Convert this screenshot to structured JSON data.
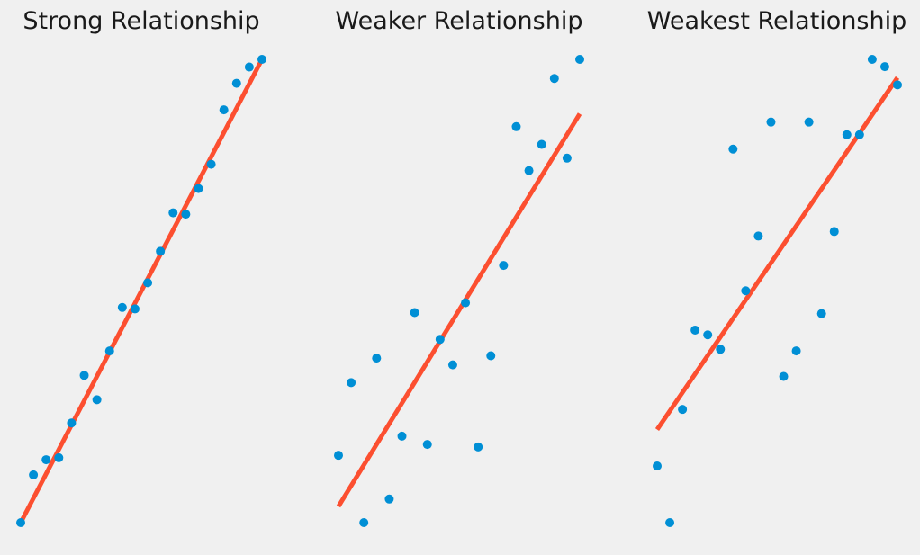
{
  "colors": {
    "background": "#f0f0f0",
    "points": "#008fd5",
    "fit_line": "#fc4f30"
  },
  "chart_data": [
    {
      "type": "scatter",
      "title": "Strong Relationship",
      "xlim": [
        0,
        19
      ],
      "ylim": [
        0,
        1
      ],
      "points": [
        [
          0,
          0.0
        ],
        [
          1,
          0.1031
        ],
        [
          2,
          0.1358
        ],
        [
          3,
          0.1401
        ],
        [
          4,
          0.2151
        ],
        [
          5,
          0.3178
        ],
        [
          6,
          0.2654
        ],
        [
          7,
          0.3706
        ],
        [
          8,
          0.4645
        ],
        [
          9,
          0.4613
        ],
        [
          10,
          0.5177
        ],
        [
          11,
          0.5858
        ],
        [
          12,
          0.6688
        ],
        [
          13,
          0.6658
        ],
        [
          14,
          0.7212
        ],
        [
          15,
          0.7736
        ],
        [
          16,
          0.891
        ],
        [
          17,
          0.9484
        ],
        [
          18,
          0.9834
        ],
        [
          19,
          1.0
        ]
      ],
      "fit_line": [
        [
          0,
          0.0
        ],
        [
          19,
          1.0
        ]
      ],
      "grid": false,
      "axes_visible": false
    },
    {
      "type": "scatter",
      "title": "Weaker Relationship",
      "xlim": [
        0,
        19
      ],
      "ylim": [
        0,
        1
      ],
      "points": [
        [
          0,
          0.1453
        ],
        [
          1,
          0.3022
        ],
        [
          2,
          0.0
        ],
        [
          3,
          0.3551
        ],
        [
          4,
          0.0509
        ],
        [
          5,
          0.1866
        ],
        [
          6,
          0.4534
        ],
        [
          7,
          0.1688
        ],
        [
          8,
          0.3956
        ],
        [
          9,
          0.3405
        ],
        [
          10,
          0.4745
        ],
        [
          11,
          0.1633
        ],
        [
          12,
          0.3602
        ],
        [
          13,
          0.5552
        ],
        [
          14,
          0.8548
        ],
        [
          15,
          0.7599
        ],
        [
          16,
          0.8164
        ],
        [
          17,
          0.9588
        ],
        [
          18,
          0.7868
        ],
        [
          19,
          1.0
        ]
      ],
      "fit_line": [
        [
          0,
          0.0351
        ],
        [
          19,
          0.8823
        ]
      ],
      "grid": false,
      "axes_visible": false
    },
    {
      "type": "scatter",
      "title": "Weakest Relationship",
      "xlim": [
        0,
        19
      ],
      "ylim": [
        0,
        1
      ],
      "points": [
        [
          0,
          0.1223
        ],
        [
          1,
          0.0
        ],
        [
          2,
          0.2443
        ],
        [
          3,
          0.4156
        ],
        [
          4,
          0.4053
        ],
        [
          5,
          0.3742
        ],
        [
          6,
          0.8063
        ],
        [
          7,
          0.5005
        ],
        [
          8,
          0.6186
        ],
        [
          9,
          0.8647
        ],
        [
          10,
          0.3155
        ],
        [
          11,
          0.3707
        ],
        [
          12,
          0.8647
        ],
        [
          13,
          0.4512
        ],
        [
          14,
          0.6283
        ],
        [
          15,
          0.8374
        ],
        [
          16,
          0.8374
        ],
        [
          17,
          1.0
        ],
        [
          18,
          0.9842
        ],
        [
          19,
          0.9449
        ]
      ],
      "fit_line": [
        [
          0,
          0.2008
        ],
        [
          19,
          0.9605
        ]
      ],
      "grid": false,
      "axes_visible": false
    }
  ]
}
